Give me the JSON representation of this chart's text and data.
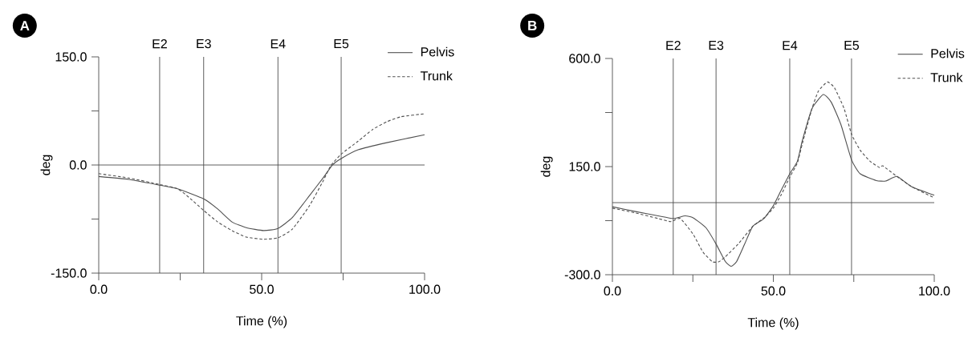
{
  "chart_data": [
    {
      "type": "line",
      "title": "A",
      "xlabel": "Time (%)",
      "ylabel": "deg",
      "xlim": [
        0,
        100
      ],
      "ylim": [
        -150,
        150
      ],
      "xticks": [
        {
          "value": 0,
          "label": "0.0"
        },
        {
          "value": 25,
          "label": null
        },
        {
          "value": 50,
          "label": "50.0"
        },
        {
          "value": 75,
          "label": null
        },
        {
          "value": 100,
          "label": "100.0"
        }
      ],
      "yticks": [
        {
          "value": -150,
          "label": "-150.0"
        },
        {
          "value": -75,
          "label": null
        },
        {
          "value": 0,
          "label": "0.0"
        },
        {
          "value": 75,
          "label": null
        },
        {
          "value": 150,
          "label": "150.0"
        }
      ],
      "legend": "top right",
      "ref_lines": [
        {
          "axis": "x",
          "value": 18.7,
          "label": "E2",
          "color": "#4d4d4d"
        },
        {
          "axis": "x",
          "value": 32.2,
          "label": "E3",
          "color": "#4d4d4d"
        },
        {
          "axis": "x",
          "value": 55.0,
          "label": "E4",
          "color": "#4d4d4d"
        },
        {
          "axis": "x",
          "value": 74.4,
          "label": "E5",
          "color": "#4d4d4d"
        },
        {
          "axis": "y",
          "value": 0,
          "color": "#4d4d4d"
        }
      ],
      "series": [
        {
          "name": "Pelvis",
          "color": "#505050",
          "line_style": "solid",
          "x": [
            0,
            9.2,
            18.7,
            24.2,
            32.2,
            36.5,
            40.9,
            45.3,
            50.6,
            55.0,
            59.4,
            64.6,
            69.0,
            71.7,
            74.4,
            79.6,
            88.4,
            100
          ],
          "values": [
            -16,
            -20,
            -28,
            -33,
            -47,
            -61,
            -79,
            -87,
            -91,
            -88,
            -73,
            -43,
            -17,
            0,
            9,
            21,
            31,
            42
          ]
        },
        {
          "name": "Trunk",
          "color": "#505050",
          "line_style": "dashed",
          "x": [
            0,
            9.2,
            18.7,
            24.2,
            27.7,
            32.2,
            36.5,
            40.9,
            45.3,
            50.6,
            55.0,
            59.4,
            64.6,
            69.0,
            71.2,
            74.4,
            79.6,
            84.0,
            88.4,
            92.8,
            100
          ],
          "values": [
            -12,
            -18,
            -27,
            -33,
            -45,
            -63,
            -79,
            -91,
            -100,
            -103,
            -101,
            -89,
            -57,
            -21,
            -1,
            15,
            33,
            49,
            60,
            67,
            71
          ]
        }
      ]
    },
    {
      "type": "line",
      "title": "B",
      "xlabel": "Time (%)",
      "ylabel": "deg",
      "xlim": [
        0,
        100
      ],
      "ylim": [
        -300,
        600
      ],
      "xticks": [
        {
          "value": 0,
          "label": "0.0"
        },
        {
          "value": 25,
          "label": null
        },
        {
          "value": 50,
          "label": "50.0"
        },
        {
          "value": 75,
          "label": null
        },
        {
          "value": 100,
          "label": "100.0"
        }
      ],
      "yticks": [
        {
          "value": -300,
          "label": "-300.0"
        },
        {
          "value": -75,
          "label": null
        },
        {
          "value": 150,
          "label": "150.0"
        },
        {
          "value": 375,
          "label": null
        },
        {
          "value": 600,
          "label": "600.0"
        }
      ],
      "legend": "top right",
      "ref_lines": [
        {
          "axis": "x",
          "value": 18.9,
          "label": "E2",
          "color": "#4d4d4d"
        },
        {
          "axis": "x",
          "value": 32.2,
          "label": "E3",
          "color": "#4d4d4d"
        },
        {
          "axis": "x",
          "value": 55.1,
          "label": "E4",
          "color": "#4d4d4d"
        },
        {
          "axis": "x",
          "value": 74.3,
          "label": "E5",
          "color": "#4d4d4d"
        },
        {
          "axis": "y",
          "value": 0,
          "color": "#4d4d4d"
        }
      ],
      "series": [
        {
          "name": "Pelvis",
          "color": "#505050",
          "line_style": "solid",
          "x": [
            0,
            7.2,
            14.2,
            18.9,
            22.6,
            25.1,
            29.1,
            32.2,
            35.1,
            36.9,
            38.6,
            41.1,
            43.6,
            47.1,
            50.0,
            52.5,
            55.1,
            57.5,
            59.0,
            62.0,
            65.5,
            68.0,
            71.0,
            74.3,
            77.0,
            82.0,
            84.9,
            88.4,
            92.9,
            100
          ],
          "values": [
            -17,
            -37,
            -55,
            -66,
            -55,
            -63,
            -105,
            -172,
            -245,
            -265,
            -245,
            -172,
            -99,
            -66,
            -13,
            53,
            120,
            173,
            258,
            391,
            450,
            418,
            325,
            178,
            120,
            92,
            90,
            109,
            67,
            31
          ]
        },
        {
          "name": "Trunk",
          "color": "#505050",
          "line_style": "dashed",
          "x": [
            0,
            7.2,
            14.2,
            18.1,
            21.1,
            25.1,
            28.1,
            31.1,
            33.1,
            35.1,
            39.1,
            43.6,
            47.1,
            50.0,
            52.5,
            55.1,
            57.5,
            59.0,
            62.0,
            64.0,
            66.8,
            69.0,
            72.0,
            74.3,
            77.0,
            80.0,
            83.0,
            84.0,
            88.0,
            92.9,
            100
          ],
          "values": [
            -23,
            -43,
            -66,
            -79,
            -66,
            -132,
            -205,
            -246,
            -246,
            -225,
            -172,
            -99,
            -63,
            -23,
            34,
            106,
            166,
            245,
            391,
            464,
            502,
            478,
            391,
            285,
            218,
            173,
            146,
            153,
            113,
            67,
            20
          ]
        }
      ]
    }
  ]
}
